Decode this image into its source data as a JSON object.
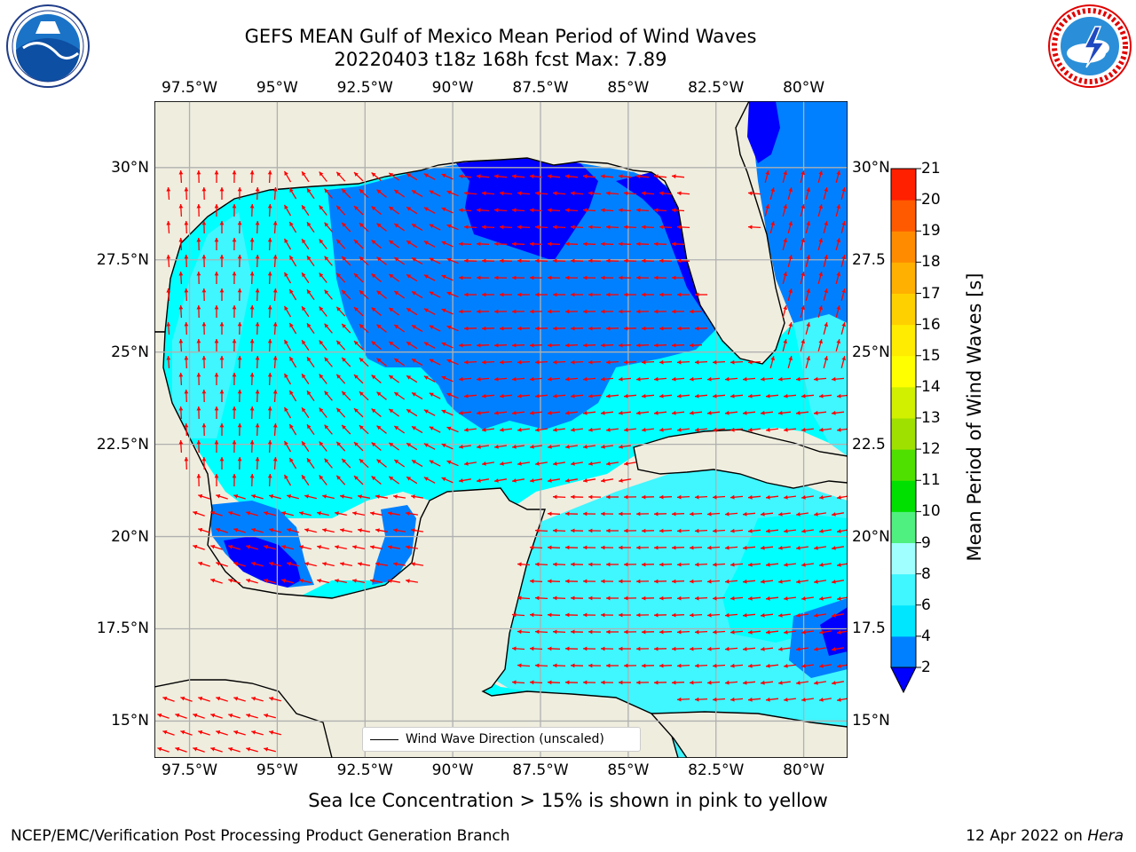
{
  "title": {
    "line1": "GEFS MEAN Gulf of Mexico Mean Period of Wind Waves",
    "line2": "20220403 t18z 168h fcst   Max: 7.89"
  },
  "logos": {
    "left": "noaa-logo",
    "right": "nws-logo"
  },
  "map": {
    "lon_range": [
      -98.5,
      -78.75
    ],
    "lat_range": [
      14.0,
      31.8
    ],
    "lon_ticks": [
      "97.5°W",
      "95°W",
      "92.5°W",
      "90°W",
      "87.5°W",
      "85°W",
      "82.5°W",
      "80°W"
    ],
    "lon_values": [
      -97.5,
      -95,
      -92.5,
      -90,
      -87.5,
      -85,
      -82.5,
      -80
    ],
    "lat_ticks_left": [
      "30°N",
      "27.5°N",
      "25°N",
      "22.5°N",
      "20°N",
      "17.5°N",
      "15°N"
    ],
    "lat_ticks_right": [
      "30°N",
      "27.5",
      "25°N",
      "22.5",
      "20°N",
      "17.5",
      "15°N"
    ],
    "lat_values": [
      30,
      27.5,
      25,
      22.5,
      20,
      17.5,
      15
    ],
    "land_color": "#efedde",
    "grid_color": "#b0b0b0",
    "arrow_color": "#ff0000",
    "legend_label": "Wind Wave Direction (unscaled)"
  },
  "colorbar": {
    "title": "Mean Period of Wind Waves [s]",
    "levels": [
      "2",
      "4",
      "6",
      "8",
      "9",
      "10",
      "11",
      "12",
      "13",
      "14",
      "15",
      "16",
      "17",
      "18",
      "19",
      "20",
      "21"
    ],
    "colors": [
      "#0080ff",
      "#00e6ff",
      "#40f6ff",
      "#a0ffff",
      "#50f080",
      "#00e000",
      "#50e000",
      "#a0e000",
      "#d0f000",
      "#ffff00",
      "#ffec00",
      "#ffd000",
      "#ffb000",
      "#ff8c00",
      "#ff5a00",
      "#ff2000"
    ],
    "under_color": "#0000ff"
  },
  "note": "Sea Ice Concentration > 15% is shown in pink to yellow",
  "footer": {
    "left": "NCEP/EMC/Verification Post Processing Product Generation Branch",
    "right_date": "12 Apr 2022 on ",
    "right_host": "Hera"
  }
}
